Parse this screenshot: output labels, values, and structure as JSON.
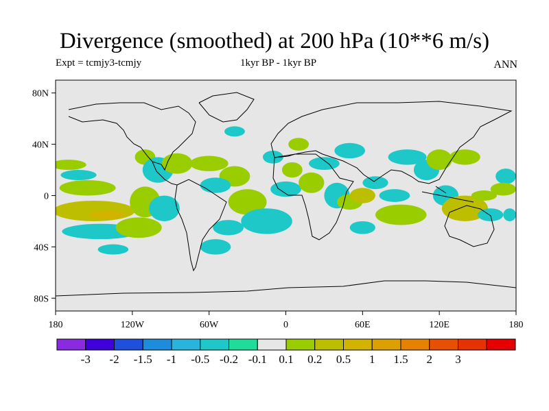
{
  "title": "Divergence (smoothed) at 200 hPa (10**6 m/s)",
  "experiment": "Expt = tcmjy3-tcmjy",
  "period": "1kyr BP - 1kyr BP",
  "season": "ANN",
  "map": {
    "projection": "cylindrical-equidistant",
    "lon_range": [
      -180,
      180
    ],
    "lat_range": [
      -90,
      90
    ],
    "background_color": "#e6e6e6",
    "coastline_color": "#000000",
    "y_ticks": [
      {
        "lat": 80,
        "label": "80N"
      },
      {
        "lat": 40,
        "label": "40N"
      },
      {
        "lat": 0,
        "label": "0"
      },
      {
        "lat": -40,
        "label": "40S"
      },
      {
        "lat": -80,
        "label": "80S"
      }
    ],
    "x_ticks": [
      {
        "lon": -180,
        "label": "180"
      },
      {
        "lon": -120,
        "label": "120W"
      },
      {
        "lon": -60,
        "label": "60W"
      },
      {
        "lon": 0,
        "label": "0"
      },
      {
        "lon": 60,
        "label": "60E"
      },
      {
        "lon": 120,
        "label": "120E"
      },
      {
        "lon": 180,
        "label": "180"
      }
    ]
  },
  "colorbar": {
    "colors": [
      "#8a2be2",
      "#4000dc",
      "#1e50dc",
      "#1e8cdc",
      "#28b4dc",
      "#1ec8c8",
      "#1edc9a",
      "#e6e6e6",
      "#9acd00",
      "#bebe00",
      "#d2b400",
      "#dca000",
      "#e68200",
      "#e65000",
      "#e63200",
      "#e60000"
    ],
    "labels": [
      "-3",
      "-2",
      "-1.5",
      "-1",
      "-0.5",
      "-0.2",
      "-0.1",
      "0.1",
      "0.2",
      "0.5",
      "1",
      "1.5",
      "2",
      "3"
    ]
  },
  "field": {
    "blobs": [
      {
        "lon": -170,
        "lat": 24,
        "rx": 14,
        "ry": 4,
        "level": "pos_low"
      },
      {
        "lon": -162,
        "lat": 16,
        "rx": 14,
        "ry": 4,
        "level": "neg_low"
      },
      {
        "lon": -155,
        "lat": 6,
        "rx": 22,
        "ry": 6,
        "level": "pos_low"
      },
      {
        "lon": -150,
        "lat": -12,
        "rx": 32,
        "ry": 8,
        "level": "pos_mid"
      },
      {
        "lon": -140,
        "lat": -15,
        "rx": 14,
        "ry": 3,
        "level": "pos_high"
      },
      {
        "lon": -145,
        "lat": -28,
        "rx": 30,
        "ry": 6,
        "level": "neg_low"
      },
      {
        "lon": -110,
        "lat": 30,
        "rx": 8,
        "ry": 6,
        "level": "pos_low"
      },
      {
        "lon": -100,
        "lat": 20,
        "rx": 12,
        "ry": 10,
        "level": "neg_low"
      },
      {
        "lon": -85,
        "lat": 25,
        "rx": 12,
        "ry": 8,
        "level": "pos_low"
      },
      {
        "lon": -110,
        "lat": -5,
        "rx": 12,
        "ry": 12,
        "level": "pos_low"
      },
      {
        "lon": -115,
        "lat": -25,
        "rx": 18,
        "ry": 8,
        "level": "pos_low"
      },
      {
        "lon": -135,
        "lat": -42,
        "rx": 12,
        "ry": 4,
        "level": "neg_low"
      },
      {
        "lon": -95,
        "lat": -10,
        "rx": 12,
        "ry": 10,
        "level": "neg_low"
      },
      {
        "lon": -60,
        "lat": 25,
        "rx": 15,
        "ry": 6,
        "level": "pos_low"
      },
      {
        "lon": -40,
        "lat": 15,
        "rx": 12,
        "ry": 8,
        "level": "pos_low"
      },
      {
        "lon": -55,
        "lat": 8,
        "rx": 12,
        "ry": 6,
        "level": "neg_low"
      },
      {
        "lon": -30,
        "lat": -5,
        "rx": 15,
        "ry": 10,
        "level": "pos_low"
      },
      {
        "lon": -15,
        "lat": -20,
        "rx": 20,
        "ry": 10,
        "level": "neg_low"
      },
      {
        "lon": -45,
        "lat": -25,
        "rx": 12,
        "ry": 6,
        "level": "neg_low"
      },
      {
        "lon": -40,
        "lat": 50,
        "rx": 8,
        "ry": 4,
        "level": "neg_low"
      },
      {
        "lon": -55,
        "lat": -40,
        "rx": 12,
        "ry": 6,
        "level": "neg_low"
      },
      {
        "lon": -10,
        "lat": 30,
        "rx": 8,
        "ry": 5,
        "level": "neg_low"
      },
      {
        "lon": 10,
        "lat": 40,
        "rx": 8,
        "ry": 5,
        "level": "pos_low"
      },
      {
        "lon": 5,
        "lat": 20,
        "rx": 8,
        "ry": 6,
        "level": "pos_low"
      },
      {
        "lon": 0,
        "lat": 5,
        "rx": 12,
        "ry": 6,
        "level": "neg_low"
      },
      {
        "lon": 20,
        "lat": 10,
        "rx": 10,
        "ry": 8,
        "level": "pos_low"
      },
      {
        "lon": 30,
        "lat": 25,
        "rx": 12,
        "ry": 5,
        "level": "neg_low"
      },
      {
        "lon": 50,
        "lat": 35,
        "rx": 12,
        "ry": 6,
        "level": "neg_low"
      },
      {
        "lon": 40,
        "lat": 0,
        "rx": 10,
        "ry": 10,
        "level": "neg_low"
      },
      {
        "lon": 50,
        "lat": -5,
        "rx": 10,
        "ry": 6,
        "level": "pos_low"
      },
      {
        "lon": 60,
        "lat": 0,
        "rx": 10,
        "ry": 6,
        "level": "pos_mid"
      },
      {
        "lon": 70,
        "lat": 10,
        "rx": 10,
        "ry": 5,
        "level": "neg_low"
      },
      {
        "lon": 85,
        "lat": 0,
        "rx": 12,
        "ry": 5,
        "level": "neg_low"
      },
      {
        "lon": 90,
        "lat": -15,
        "rx": 20,
        "ry": 8,
        "level": "pos_low"
      },
      {
        "lon": 60,
        "lat": -25,
        "rx": 10,
        "ry": 5,
        "level": "neg_low"
      },
      {
        "lon": 95,
        "lat": 30,
        "rx": 15,
        "ry": 6,
        "level": "neg_low"
      },
      {
        "lon": 110,
        "lat": 20,
        "rx": 10,
        "ry": 8,
        "level": "neg_low"
      },
      {
        "lon": 120,
        "lat": 28,
        "rx": 10,
        "ry": 8,
        "level": "pos_low"
      },
      {
        "lon": 140,
        "lat": 30,
        "rx": 12,
        "ry": 6,
        "level": "pos_low"
      },
      {
        "lon": 125,
        "lat": 0,
        "rx": 10,
        "ry": 8,
        "level": "neg_low"
      },
      {
        "lon": 140,
        "lat": -10,
        "rx": 18,
        "ry": 10,
        "level": "pos_mid"
      },
      {
        "lon": 155,
        "lat": 0,
        "rx": 10,
        "ry": 4,
        "level": "pos_low"
      },
      {
        "lon": 160,
        "lat": -15,
        "rx": 10,
        "ry": 5,
        "level": "neg_low"
      },
      {
        "lon": 172,
        "lat": 15,
        "rx": 8,
        "ry": 6,
        "level": "neg_low"
      },
      {
        "lon": 175,
        "lat": -15,
        "rx": 5,
        "ry": 5,
        "level": "neg_low"
      },
      {
        "lon": 170,
        "lat": 5,
        "rx": 10,
        "ry": 5,
        "level": "pos_low"
      }
    ],
    "level_colors": {
      "neg_low": "#1ec8c8",
      "pos_low": "#9acd00",
      "pos_mid": "#bebe00",
      "pos_high": "#d2b400"
    }
  }
}
